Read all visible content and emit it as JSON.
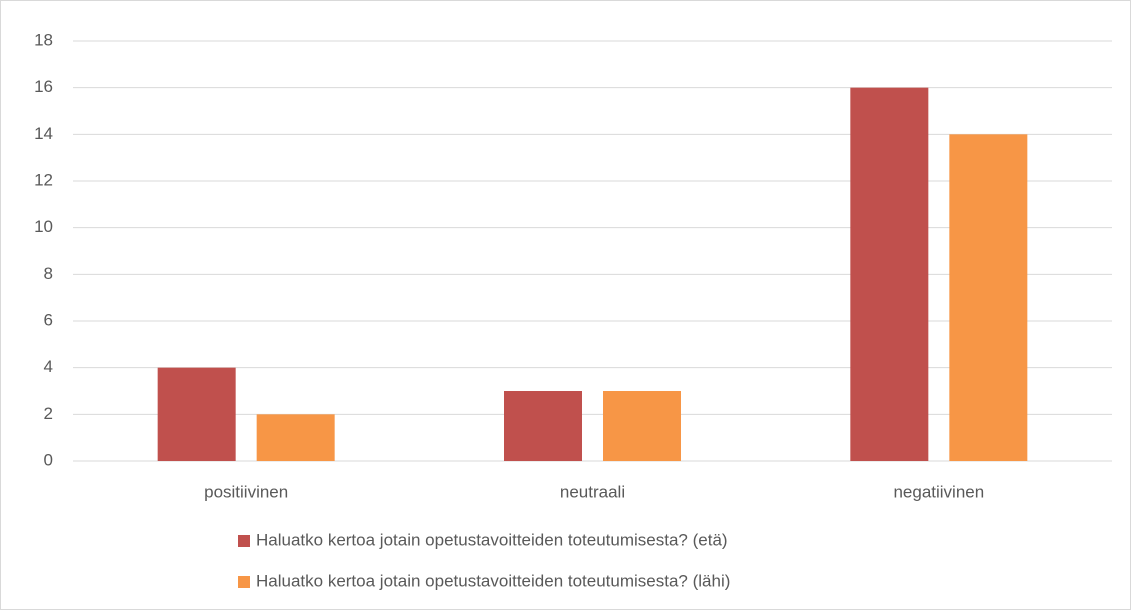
{
  "chart_data": {
    "type": "bar",
    "categories": [
      "positiivinen",
      "neutraali",
      "negatiivinen"
    ],
    "series": [
      {
        "name": "Haluatko kertoa jotain opetustavoitteiden toteutumisesta? (etä)",
        "color": "#c0504d",
        "values": [
          4,
          3,
          16
        ]
      },
      {
        "name": "Haluatko kertoa jotain opetustavoitteiden toteutumisesta? (lähi)",
        "color": "#f79646",
        "values": [
          2,
          3,
          14
        ]
      }
    ],
    "ylim": [
      0,
      18
    ],
    "yticks": [
      0,
      2,
      4,
      6,
      8,
      10,
      12,
      14,
      16,
      18
    ],
    "grid": true,
    "legend": "bottom"
  }
}
